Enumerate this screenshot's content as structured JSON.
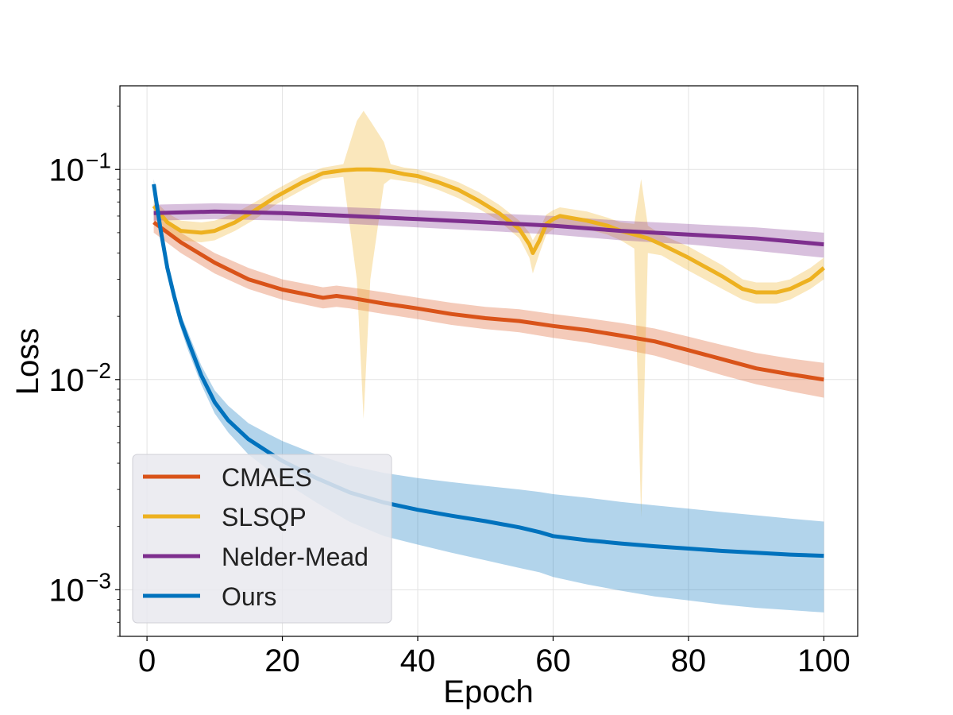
{
  "chart_data": {
    "type": "line",
    "xlabel": "Epoch",
    "ylabel": "Loss",
    "xlim": [
      -4,
      105
    ],
    "ylim": [
      0.0006,
      0.25
    ],
    "yscale": "log",
    "grid": true,
    "legend_position": "bottom-left",
    "x_ticks": [
      {
        "value": 0,
        "label": "0"
      },
      {
        "value": 20,
        "label": "20"
      },
      {
        "value": 40,
        "label": "40"
      },
      {
        "value": 60,
        "label": "60"
      },
      {
        "value": 80,
        "label": "80"
      },
      {
        "value": 100,
        "label": "100"
      }
    ],
    "y_ticks": [
      {
        "value": 0.001,
        "base": "10",
        "exp": "−3"
      },
      {
        "value": 0.01,
        "base": "10",
        "exp": "−2"
      },
      {
        "value": 0.1,
        "base": "10",
        "exp": "−1"
      }
    ],
    "series": [
      {
        "name": "CMAES",
        "color": "#D95319",
        "x": [
          1,
          5,
          10,
          15,
          20,
          26,
          28,
          30,
          35,
          40,
          45,
          50,
          55,
          60,
          65,
          70,
          75,
          80,
          85,
          90,
          95,
          100
        ],
        "y": [
          0.056,
          0.045,
          0.036,
          0.03,
          0.0268,
          0.0245,
          0.025,
          0.0245,
          0.023,
          0.0218,
          0.0205,
          0.0196,
          0.019,
          0.018,
          0.0172,
          0.0162,
          0.0152,
          0.0138,
          0.0125,
          0.0113,
          0.0106,
          0.01
        ],
        "lower": [
          0.05,
          0.04,
          0.032,
          0.027,
          0.024,
          0.0218,
          0.0222,
          0.0218,
          0.0205,
          0.0194,
          0.0182,
          0.0174,
          0.0168,
          0.0158,
          0.015,
          0.014,
          0.013,
          0.0117,
          0.0105,
          0.0095,
          0.0088,
          0.0082
        ],
        "upper": [
          0.062,
          0.05,
          0.04,
          0.034,
          0.03,
          0.0275,
          0.028,
          0.0275,
          0.026,
          0.0245,
          0.0232,
          0.0222,
          0.0216,
          0.0205,
          0.0196,
          0.0186,
          0.0175,
          0.016,
          0.0146,
          0.0134,
          0.0126,
          0.012
        ]
      },
      {
        "name": "SLSQP",
        "color": "#EDB120",
        "x": [
          1,
          3,
          5,
          8,
          10,
          13,
          16,
          19,
          23,
          26,
          29,
          31,
          32,
          33,
          35,
          36,
          38,
          40,
          43,
          46,
          49,
          52,
          55,
          56.5,
          57,
          58,
          59,
          60,
          61,
          65,
          68,
          70,
          72,
          73,
          74,
          76,
          80,
          85,
          88,
          90,
          93,
          95,
          98,
          100
        ],
        "y": [
          0.067,
          0.056,
          0.051,
          0.05,
          0.051,
          0.056,
          0.064,
          0.074,
          0.087,
          0.096,
          0.099,
          0.1,
          0.1,
          0.1,
          0.099,
          0.098,
          0.095,
          0.093,
          0.087,
          0.08,
          0.071,
          0.062,
          0.052,
          0.044,
          0.04,
          0.046,
          0.055,
          0.058,
          0.06,
          0.057,
          0.054,
          0.051,
          0.049,
          0.048,
          0.047,
          0.044,
          0.038,
          0.031,
          0.027,
          0.026,
          0.026,
          0.027,
          0.03,
          0.034
        ],
        "lower": [
          0.062,
          0.05,
          0.046,
          0.045,
          0.046,
          0.051,
          0.058,
          0.068,
          0.08,
          0.09,
          0.092,
          0.03,
          0.0065,
          0.03,
          0.085,
          0.09,
          0.088,
          0.086,
          0.08,
          0.073,
          0.065,
          0.057,
          0.047,
          0.038,
          0.032,
          0.04,
          0.049,
          0.052,
          0.054,
          0.052,
          0.049,
          0.046,
          0.042,
          0.0022,
          0.04,
          0.039,
          0.033,
          0.027,
          0.024,
          0.023,
          0.023,
          0.024,
          0.027,
          0.03
        ],
        "upper": [
          0.072,
          0.062,
          0.057,
          0.056,
          0.057,
          0.062,
          0.07,
          0.08,
          0.094,
          0.102,
          0.106,
          0.17,
          0.19,
          0.17,
          0.135,
          0.106,
          0.102,
          0.1,
          0.094,
          0.087,
          0.078,
          0.068,
          0.057,
          0.05,
          0.046,
          0.052,
          0.061,
          0.064,
          0.066,
          0.063,
          0.059,
          0.056,
          0.055,
          0.09,
          0.054,
          0.049,
          0.043,
          0.035,
          0.03,
          0.029,
          0.029,
          0.03,
          0.034,
          0.038
        ]
      },
      {
        "name": "Nelder-Mead",
        "color": "#7E2F8E",
        "x": [
          1,
          10,
          20,
          30,
          40,
          50,
          60,
          70,
          80,
          90,
          100
        ],
        "y": [
          0.062,
          0.063,
          0.062,
          0.06,
          0.058,
          0.056,
          0.054,
          0.051,
          0.049,
          0.047,
          0.044
        ],
        "lower": [
          0.057,
          0.058,
          0.057,
          0.055,
          0.053,
          0.051,
          0.049,
          0.046,
          0.044,
          0.041,
          0.038
        ],
        "upper": [
          0.068,
          0.069,
          0.068,
          0.066,
          0.064,
          0.062,
          0.06,
          0.057,
          0.055,
          0.053,
          0.05
        ]
      },
      {
        "name": "Ours",
        "color": "#0072BD",
        "x": [
          1,
          2,
          3,
          4,
          5,
          6,
          8,
          10,
          12,
          15,
          18,
          20,
          25,
          30,
          35,
          40,
          45,
          50,
          55,
          58,
          60,
          65,
          70,
          75,
          80,
          85,
          90,
          95,
          100
        ],
        "y": [
          0.085,
          0.052,
          0.034,
          0.025,
          0.019,
          0.0155,
          0.0105,
          0.0078,
          0.0064,
          0.0052,
          0.0045,
          0.0041,
          0.0034,
          0.0029,
          0.0026,
          0.0024,
          0.00225,
          0.00212,
          0.00198,
          0.00188,
          0.0018,
          0.00172,
          0.00166,
          0.00161,
          0.00157,
          0.00153,
          0.0015,
          0.00147,
          0.00145
        ],
        "lower": [
          0.08,
          0.049,
          0.032,
          0.023,
          0.0175,
          0.014,
          0.0095,
          0.0069,
          0.0056,
          0.0044,
          0.0037,
          0.0033,
          0.0026,
          0.0021,
          0.0018,
          0.00164,
          0.0015,
          0.00138,
          0.00127,
          0.00121,
          0.00115,
          0.00106,
          0.00099,
          0.00093,
          0.00089,
          0.00085,
          0.00082,
          0.0008,
          0.00078
        ],
        "upper": [
          0.09,
          0.056,
          0.037,
          0.027,
          0.0205,
          0.017,
          0.0117,
          0.0089,
          0.0075,
          0.0062,
          0.0055,
          0.0051,
          0.0044,
          0.0039,
          0.0036,
          0.0034,
          0.00325,
          0.00312,
          0.003,
          0.00292,
          0.00285,
          0.00274,
          0.00262,
          0.00252,
          0.00243,
          0.00234,
          0.00226,
          0.00218,
          0.00211
        ]
      }
    ]
  }
}
